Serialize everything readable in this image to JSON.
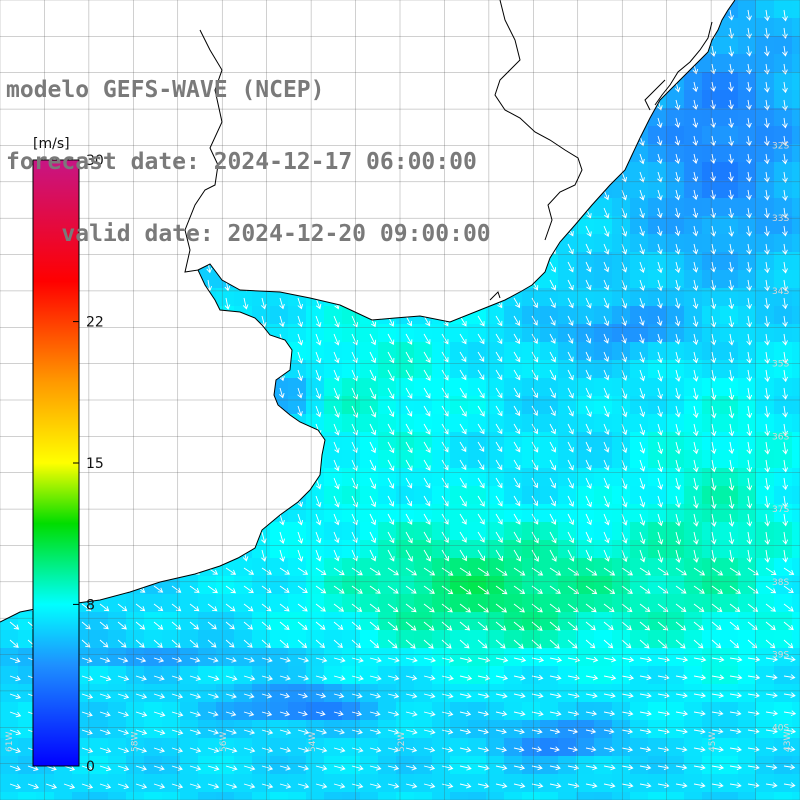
{
  "title": {
    "line1": "modelo GEFS-WAVE (NCEP)",
    "line2": "forecast date: 2024-12-17 06:00:00",
    "line3": "    valid date: 2024-12-20 09:00:00"
  },
  "colorbar": {
    "unit": "[m/s]",
    "min": 0,
    "max": 30,
    "ticks": [
      {
        "value": 30,
        "label": "30"
      },
      {
        "value": 22,
        "label": "22"
      },
      {
        "value": 15,
        "label": "15"
      },
      {
        "value": 8,
        "label": "8"
      },
      {
        "value": 0,
        "label": "0"
      }
    ],
    "stops": [
      {
        "value": 0,
        "color": "#0000ff"
      },
      {
        "value": 5,
        "color": "#1e90ff"
      },
      {
        "value": 8,
        "color": "#00ffff"
      },
      {
        "value": 12,
        "color": "#00dd00"
      },
      {
        "value": 15,
        "color": "#ffff00"
      },
      {
        "value": 19,
        "color": "#ff9900"
      },
      {
        "value": 24,
        "color": "#ff0000"
      },
      {
        "value": 30,
        "color": "#c71585"
      }
    ]
  },
  "map": {
    "lon_range": [
      -61,
      -43
    ],
    "lat_range": [
      -41,
      -30
    ],
    "lat_labels": [
      {
        "lat": -32,
        "label": "32S"
      },
      {
        "lat": -33,
        "label": "33S"
      },
      {
        "lat": -34,
        "label": "34S"
      },
      {
        "lat": -35,
        "label": "35S"
      },
      {
        "lat": -36,
        "label": "36S"
      },
      {
        "lat": -37,
        "label": "37S"
      },
      {
        "lat": -38,
        "label": "38S"
      },
      {
        "lat": -39,
        "label": "39S"
      },
      {
        "lat": -40,
        "label": "40S"
      }
    ],
    "lon_labels": [
      {
        "lon": -61,
        "label": "61W"
      },
      {
        "lon": -58,
        "label": "58W"
      },
      {
        "lon": -56,
        "label": "56W"
      },
      {
        "lon": -54,
        "label": "54W"
      },
      {
        "lon": -52,
        "label": "52W"
      },
      {
        "lon": -45,
        "label": "45W"
      },
      {
        "lon": -43,
        "label": "43W"
      }
    ]
  }
}
